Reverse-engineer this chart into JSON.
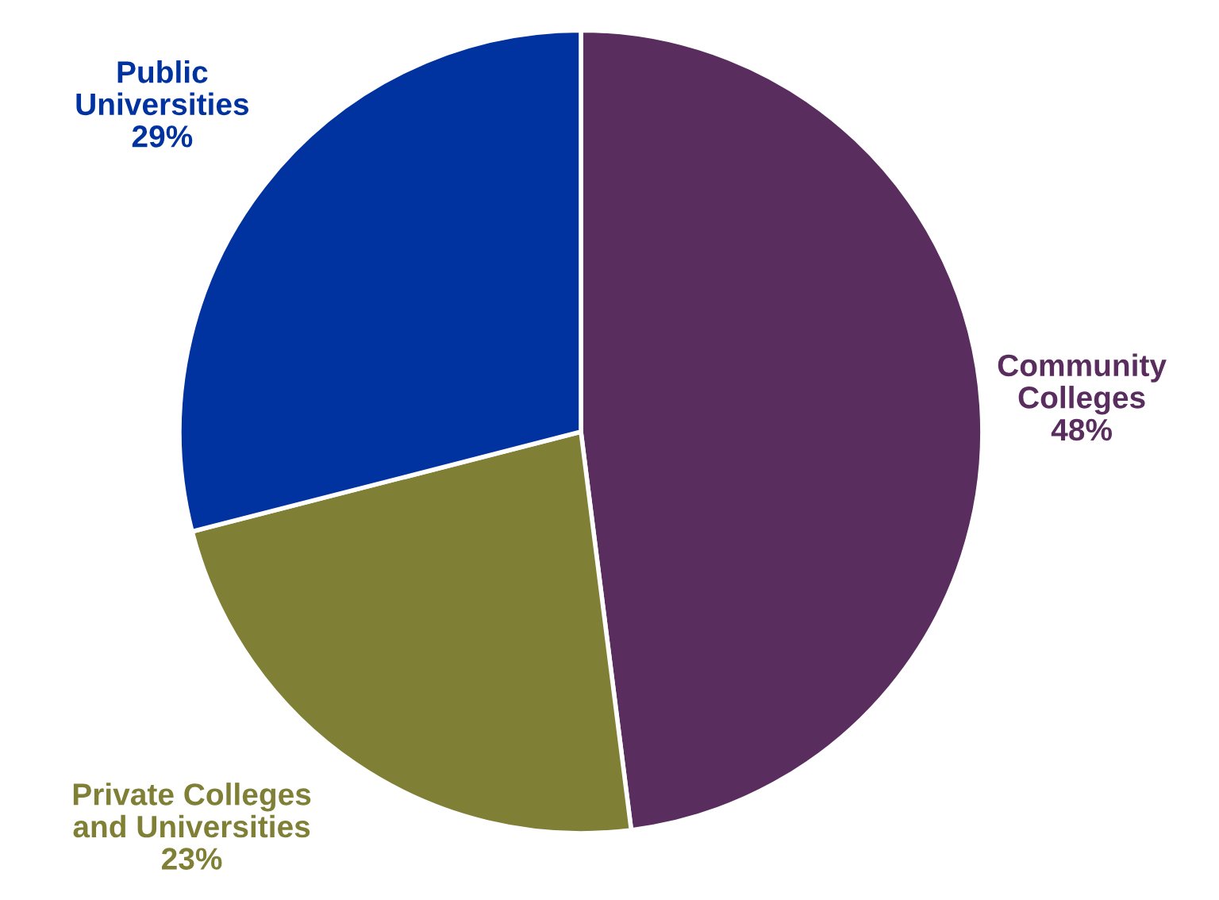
{
  "chart_data": {
    "type": "pie",
    "categories": [
      "Community\nColleges",
      "Private Colleges\nand Universities",
      "Public\nUniversities"
    ],
    "values": [
      48,
      23,
      29
    ],
    "value_labels": [
      "48%",
      "23%",
      "29%"
    ],
    "colors": [
      "#5a2d5f",
      "#7f7f36",
      "#0033a0"
    ]
  }
}
